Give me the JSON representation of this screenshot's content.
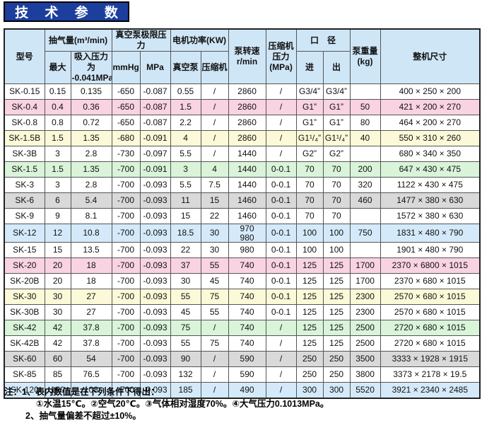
{
  "title": "技 术 参 数",
  "colors": {
    "title_bg": "#1c3f9d",
    "title_text": "#ffffff",
    "header_bg": "#cfe6f7",
    "border": "#555555",
    "row_tints": {
      "white": "#ffffff",
      "pink": "#f9d3e2",
      "cream": "#fcf9d8",
      "green": "#d9f4d9",
      "gray": "#d9d9d9",
      "blue": "#d4eafa"
    }
  },
  "table": {
    "header": {
      "model": "型号",
      "capacity_group": "抽气量(m³/min)",
      "capacity_max": "最大",
      "capacity_suction": "吸入压力为\n-0.041MPa",
      "limit_group": "真空泵极限压力",
      "limit_mmhg": "mmHg",
      "limit_mpa": "MPa",
      "power_group": "电机功率(KW)",
      "power_pump": "真空泵",
      "power_comp": "压缩机",
      "speed": "泵转速\nr/min",
      "comp_pressure": "压缩机\n压力\n(MPa)",
      "caliber_group": "口　径",
      "caliber_in": "进",
      "caliber_out": "出",
      "weight": "泵重量\n(kg)",
      "dimensions": "整机尺寸"
    },
    "rows": [
      {
        "tint": "white",
        "cells": [
          "SK-0.15",
          "0.15",
          "0.135",
          "-650",
          "-0.087",
          "0.55",
          "/",
          "2860",
          "/",
          "G3/4”",
          "G3/4”",
          "",
          "400 × 250 × 200"
        ]
      },
      {
        "tint": "pink",
        "cells": [
          "SK-0.4",
          "0.4",
          "0.36",
          "-650",
          "-0.087",
          "1.5",
          "/",
          "2860",
          "/",
          "G1”",
          "G1”",
          "50",
          "421 × 200 × 270"
        ]
      },
      {
        "tint": "white",
        "cells": [
          "SK-0.8",
          "0.8",
          "0.72",
          "-650",
          "-0.087",
          "2.2",
          "/",
          "2860",
          "/",
          "G1”",
          "G1”",
          "80",
          "464 × 200 × 270"
        ]
      },
      {
        "tint": "cream",
        "cells": [
          "SK-1.5B",
          "1.5",
          "1.35",
          "-680",
          "-0.091",
          "4",
          "/",
          "2860",
          "/",
          "G1¹/₄”",
          "G1¹/₄”",
          "40",
          "550 × 310 × 260"
        ]
      },
      {
        "tint": "white",
        "cells": [
          "SK-3B",
          "3",
          "2.8",
          "-730",
          "-0.097",
          "5.5",
          "/",
          "1440",
          "/",
          "G2”",
          "G2”",
          "",
          "680 × 340 × 350"
        ]
      },
      {
        "tint": "green",
        "cells": [
          "SK-1.5",
          "1.5",
          "1.35",
          "-700",
          "-0.091",
          "3",
          "4",
          "1440",
          "0-0.1",
          "70",
          "70",
          "200",
          "647 × 430 × 475"
        ]
      },
      {
        "tint": "white",
        "cells": [
          "SK-3",
          "3",
          "2.8",
          "-700",
          "-0.093",
          "5.5",
          "7.5",
          "1440",
          "0-0.1",
          "70",
          "70",
          "320",
          "1122 × 430 × 475"
        ]
      },
      {
        "tint": "gray",
        "cells": [
          "SK-6",
          "6",
          "5.4",
          "-700",
          "-0.093",
          "11",
          "15",
          "1460",
          "0-0.1",
          "70",
          "70",
          "460",
          "1477 × 380 × 630"
        ]
      },
      {
        "tint": "white",
        "cells": [
          "SK-9",
          "9",
          "8.1",
          "-700",
          "-0.093",
          "15",
          "22",
          "1460",
          "0-0.1",
          "70",
          "70",
          "",
          "1572 × 380 × 630"
        ]
      },
      {
        "tint": "blue",
        "cells": [
          "SK-12",
          "12",
          "10.8",
          "-700",
          "-0.093",
          "18.5",
          "30",
          "970    980",
          "0-0.1",
          "100",
          "100",
          "750",
          "1831 × 480 × 790"
        ]
      },
      {
        "tint": "white",
        "cells": [
          "SK-15",
          "15",
          "13.5",
          "-700",
          "-0.093",
          "22",
          "30",
          "980",
          "0-0.1",
          "100",
          "100",
          "",
          "1901 × 480 × 790"
        ]
      },
      {
        "tint": "pink",
        "cells": [
          "SK-20",
          "20",
          "18",
          "-700",
          "-0.093",
          "37",
          "55",
          "740",
          "0-0.1",
          "125",
          "125",
          "1700",
          "2370 × 6800 × 1015"
        ]
      },
      {
        "tint": "white",
        "cells": [
          "SK-20B",
          "20",
          "18",
          "-700",
          "-0.093",
          "30",
          "45",
          "740",
          "0-0.1",
          "125",
          "125",
          "1700",
          "2370 × 680 × 1015"
        ]
      },
      {
        "tint": "cream",
        "cells": [
          "SK-30",
          "30",
          "27",
          "-700",
          "-0.093",
          "55",
          "75",
          "740",
          "0-0.1",
          "125",
          "125",
          "2300",
          "2570 × 680 × 1015"
        ]
      },
      {
        "tint": "white",
        "cells": [
          "SK-30B",
          "30",
          "27",
          "-700",
          "-0.093",
          "45",
          "55",
          "740",
          "0-0.1",
          "125",
          "125",
          "2300",
          "2570 × 680 × 1015"
        ]
      },
      {
        "tint": "green",
        "cells": [
          "SK-42",
          "42",
          "37.8",
          "-700",
          "-0.093",
          "75",
          "/",
          "740",
          "/",
          "125",
          "125",
          "2500",
          "2720 × 680 × 1015"
        ]
      },
      {
        "tint": "white",
        "cells": [
          "SK-42B",
          "42",
          "37.8",
          "-700",
          "-0.093",
          "55",
          "75",
          "740",
          "/",
          "125",
          "125",
          "2500",
          "2720 × 680 × 1015"
        ]
      },
      {
        "tint": "gray",
        "cells": [
          "SK-60",
          "60",
          "54",
          "-700",
          "-0.093",
          "90",
          "/",
          "590",
          "/",
          "250",
          "250",
          "3500",
          "3333 × 1928 × 1915"
        ]
      },
      {
        "tint": "white",
        "cells": [
          "SK-85",
          "85",
          "76.5",
          "-700",
          "-0.093",
          "132",
          "/",
          "590",
          "/",
          "250",
          "250",
          "3800",
          "3373 × 2178 × 19.5"
        ]
      },
      {
        "tint": "blue",
        "cells": [
          "SK-120",
          "120",
          "108",
          "-700",
          "-0.093",
          "185",
          "/",
          "490",
          "/",
          "300",
          "300",
          "5520",
          "3921 × 2340 × 2485"
        ]
      }
    ]
  },
  "notes": {
    "line1": "注：1、表内数值是在下列条件下得出：",
    "line2": "①水温15℃。②空气20℃。③气体相对湿度70%。④大气压力0.1013MPa。",
    "line3": "2、抽气量偏差不超过±10%。"
  }
}
